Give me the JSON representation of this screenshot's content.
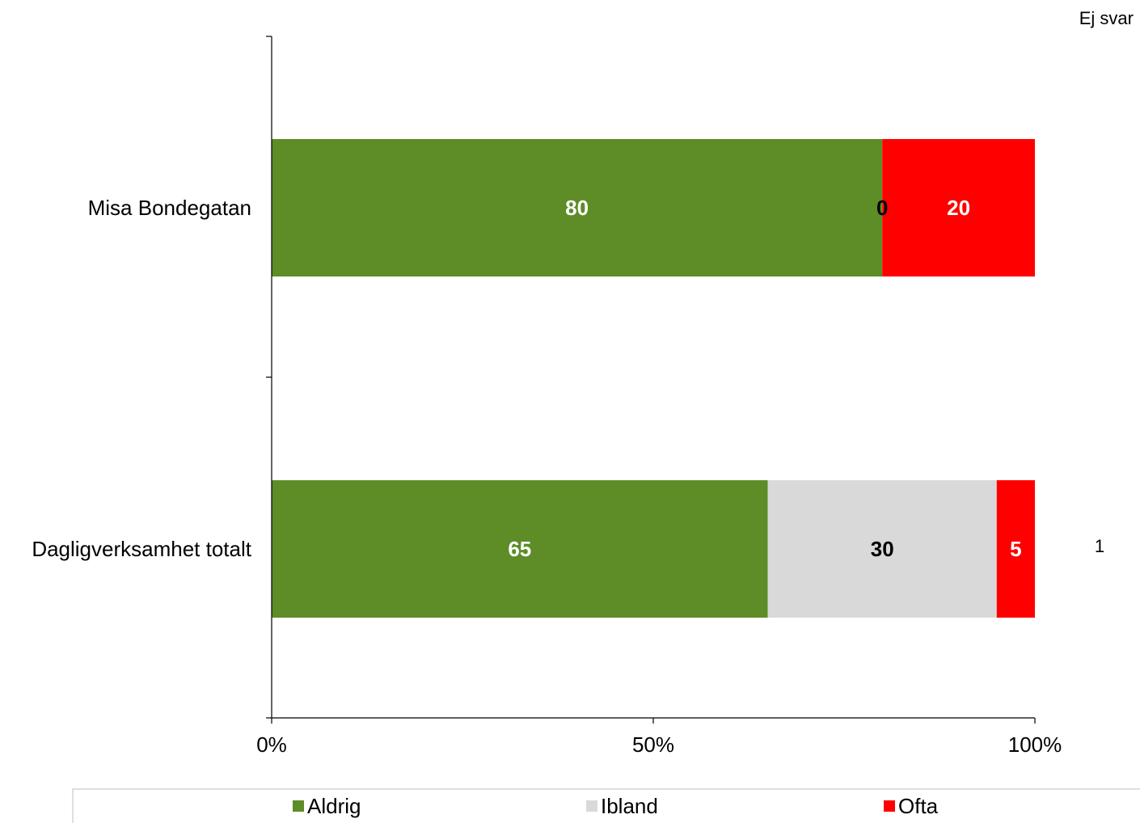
{
  "chart_data": {
    "type": "bar",
    "orientation": "horizontal",
    "stacked": true,
    "categories": [
      "Misa Bondegatan",
      "Dagligverksamhet totalt"
    ],
    "series": [
      {
        "name": "Aldrig",
        "values": [
          80,
          65
        ],
        "color": "#5e8c27",
        "label_color": "#ffffff"
      },
      {
        "name": "Ibland",
        "values": [
          0,
          30
        ],
        "color": "#d9d9d9",
        "label_color": "#000000"
      },
      {
        "name": "Ofta",
        "values": [
          20,
          5
        ],
        "color": "#ff0000",
        "label_color": "#ffffff"
      }
    ],
    "xlim": [
      0,
      100
    ],
    "x_ticks": [
      "0%",
      "50%",
      "100%"
    ],
    "side_column": {
      "header": "Ej svar",
      "values": [
        "",
        "1"
      ]
    },
    "legend_position": "bottom",
    "grid": false
  }
}
